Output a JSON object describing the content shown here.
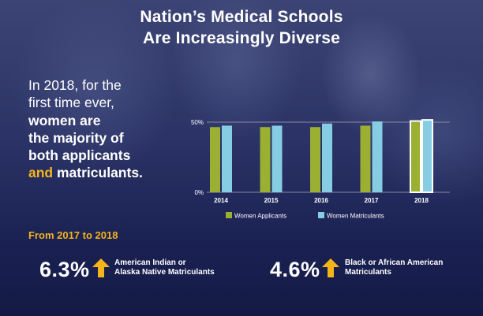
{
  "title": {
    "line1": "Nation’s Medical Schools",
    "line2": "Are Increasingly Diverse"
  },
  "intro": {
    "line1": "In 2018, for the",
    "line2": "first time ever,",
    "line3": "women are",
    "line4": "the majority of",
    "line5": "both applicants",
    "line6_highlight": "and",
    "line6_rest": " matriculants."
  },
  "colors": {
    "applicants": "#9bb033",
    "matriculants": "#86cde3",
    "accent": "#f4b41a",
    "highlight_outline": "#ffffff"
  },
  "chart_data": {
    "type": "bar",
    "categories": [
      "2014",
      "2015",
      "2016",
      "2017",
      "2018"
    ],
    "series": [
      {
        "name": "Women Applicants",
        "values": [
          46.5,
          46.5,
          46.5,
          47.5,
          50.8
        ]
      },
      {
        "name": "Women Matriculants",
        "values": [
          47.5,
          47.5,
          49,
          50.5,
          51.6
        ]
      }
    ],
    "ylim": [
      0,
      50
    ],
    "yticks": [
      "0%",
      "50%"
    ],
    "highlighted_category": "2018",
    "legend_position": "bottom",
    "grid": false
  },
  "stats": {
    "range_label": "From 2017 to 2018",
    "items": [
      {
        "value": "6.3%",
        "icon": "up-arrow-icon",
        "desc_line1": "American Indian or",
        "desc_line2": "Alaska Native Matriculants"
      },
      {
        "value": "4.6%",
        "icon": "up-arrow-icon",
        "desc_line1": "Black or African American",
        "desc_line2": "Matriculants"
      }
    ]
  }
}
